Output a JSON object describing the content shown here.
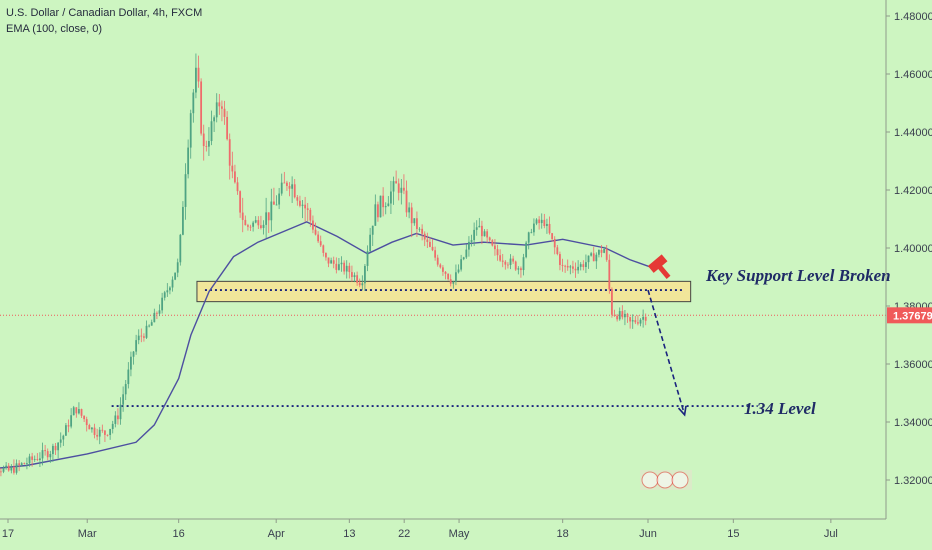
{
  "header": {
    "symbol_title": "U.S. Dollar / Canadian Dollar, 4h, FXCM",
    "indicator_label": "EMA (100, close, 0)"
  },
  "chart_data": {
    "type": "candlestick",
    "title": "U.S. Dollar / Canadian Dollar, 4h, FXCM",
    "xlabel": "",
    "ylabel": "",
    "x_ticks": [
      "17",
      "Mar",
      "16",
      "Apr",
      "13",
      "22",
      "May",
      "18",
      "Jun",
      "15",
      "Jul"
    ],
    "y_ticks": [
      "1.48000",
      "1.46000",
      "1.44000",
      "1.42000",
      "1.40000",
      "1.38000",
      "1.37679",
      "1.36000",
      "1.34000",
      "1.32000"
    ],
    "ylim": [
      1.305,
      1.4855
    ],
    "grid": false,
    "last_price": 1.37679,
    "last_price_label": "1.37679",
    "price_path": [
      [
        "2020-02-12",
        1.327
      ],
      [
        "2020-02-17",
        1.323
      ],
      [
        "2020-02-20",
        1.326
      ],
      [
        "2020-02-24",
        1.33
      ],
      [
        "2020-02-26",
        1.335
      ],
      [
        "2020-02-28",
        1.345
      ],
      [
        "2020-03-02",
        1.337
      ],
      [
        "2020-03-04",
        1.336
      ],
      [
        "2020-03-06",
        1.342
      ],
      [
        "2020-03-09",
        1.368
      ],
      [
        "2020-03-11",
        1.372
      ],
      [
        "2020-03-13",
        1.38
      ],
      [
        "2020-03-16",
        1.395
      ],
      [
        "2020-03-17",
        1.425
      ],
      [
        "2020-03-18",
        1.448
      ],
      [
        "2020-03-19",
        1.462
      ],
      [
        "2020-03-20",
        1.433
      ],
      [
        "2020-03-23",
        1.452
      ],
      [
        "2020-03-24",
        1.436
      ],
      [
        "2020-03-25",
        1.422
      ],
      [
        "2020-03-27",
        1.407
      ],
      [
        "2020-03-31",
        1.412
      ],
      [
        "2020-04-03",
        1.424
      ],
      [
        "2020-04-06",
        1.413
      ],
      [
        "2020-04-09",
        1.396
      ],
      [
        "2020-04-13",
        1.392
      ],
      [
        "2020-04-15",
        1.388
      ],
      [
        "2020-04-17",
        1.412
      ],
      [
        "2020-04-21",
        1.422
      ],
      [
        "2020-04-23",
        1.411
      ],
      [
        "2020-04-27",
        1.397
      ],
      [
        "2020-04-30",
        1.388
      ],
      [
        "2020-05-04",
        1.408
      ],
      [
        "2020-05-07",
        1.398
      ],
      [
        "2020-05-11",
        1.393
      ],
      [
        "2020-05-13",
        1.408
      ],
      [
        "2020-05-15",
        1.409
      ],
      [
        "2020-05-18",
        1.393
      ],
      [
        "2020-05-21",
        1.394
      ],
      [
        "2020-05-25",
        1.4
      ],
      [
        "2020-05-26",
        1.378
      ],
      [
        "2020-05-28",
        1.376
      ],
      [
        "2020-05-29",
        1.374
      ],
      [
        "2020-06-01",
        1.377
      ]
    ],
    "ema_series": {
      "name": "EMA (100, close, 0)",
      "points": [
        [
          "2020-02-10",
          1.323
        ],
        [
          "2020-02-20",
          1.325
        ],
        [
          "2020-03-01",
          1.329
        ],
        [
          "2020-03-09",
          1.333
        ],
        [
          "2020-03-12",
          1.339
        ],
        [
          "2020-03-16",
          1.355
        ],
        [
          "2020-03-18",
          1.37
        ],
        [
          "2020-03-21",
          1.385
        ],
        [
          "2020-03-25",
          1.397
        ],
        [
          "2020-03-29",
          1.402
        ],
        [
          "2020-04-06",
          1.409
        ],
        [
          "2020-04-11",
          1.404
        ],
        [
          "2020-04-16",
          1.398
        ],
        [
          "2020-04-20",
          1.402
        ],
        [
          "2020-04-24",
          1.405
        ],
        [
          "2020-04-30",
          1.401
        ],
        [
          "2020-05-05",
          1.402
        ],
        [
          "2020-05-12",
          1.401
        ],
        [
          "2020-05-18",
          1.403
        ],
        [
          "2020-05-25",
          1.4
        ],
        [
          "2020-05-29",
          1.396
        ],
        [
          "2020-06-02",
          1.393
        ]
      ]
    },
    "annotations": {
      "support_label": "Key Support Level Broken",
      "target_label": "1.34 Level",
      "support_zone": [
        1.3815,
        1.3885
      ],
      "support_line": 1.3855,
      "target_line": 1.3455,
      "arrow_from": [
        "2020-06-01",
        1.3855
      ],
      "arrow_to": [
        "2020-06-07",
        1.3425
      ],
      "target_line_start": "2020-03-05",
      "target_line_end": "2020-06-19",
      "support_zone_start": "2020-03-19",
      "support_zone_end": "2020-06-08"
    },
    "colors": {
      "background": "#cdf5c1",
      "up_candle": "#4fa383",
      "down_candle": "#ef6b6b",
      "ema": "#4d4fa0",
      "support_fill": "#f1e69a",
      "price_line": "#f05a5a",
      "arrow": "#1a237e"
    }
  }
}
